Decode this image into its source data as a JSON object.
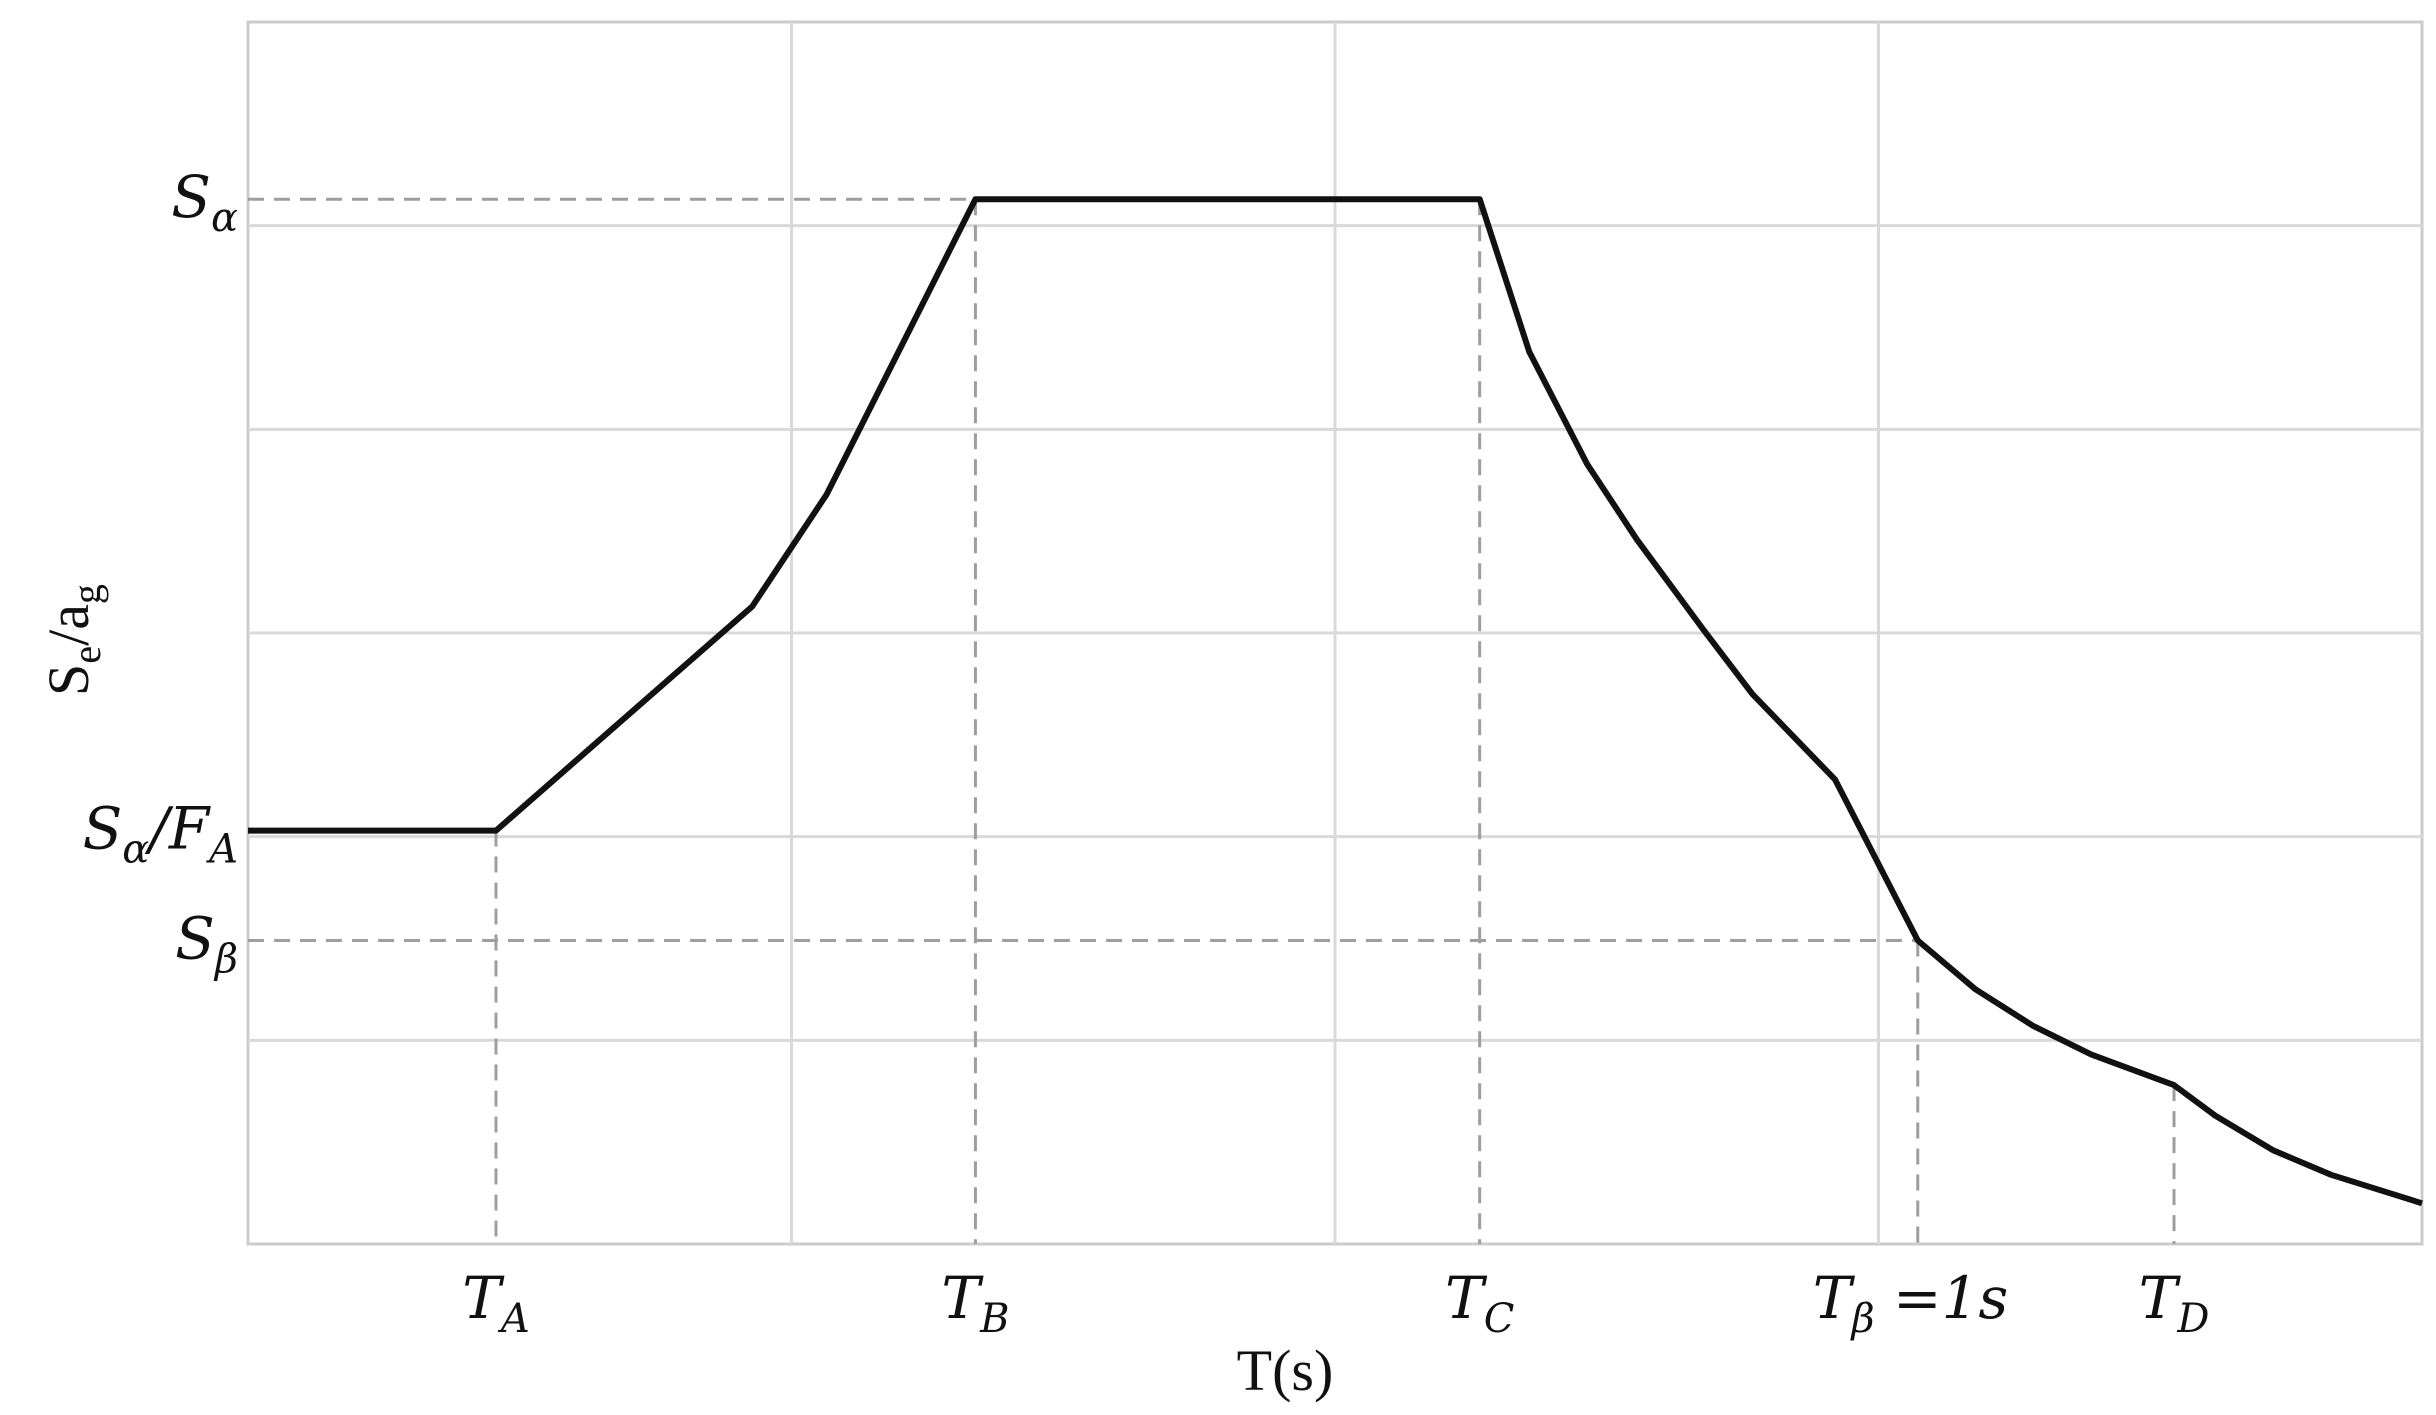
{
  "chart_data": {
    "type": "line",
    "title": "",
    "xlabel": "T(s)",
    "ylabel": {
      "main": "S",
      "sub1": "e",
      "mid": "/a",
      "sub2": "g"
    },
    "grid": true,
    "x_ticks": [
      {
        "main": "T",
        "sub": "A",
        "suffix": "",
        "value": 0.3
      },
      {
        "main": "T",
        "sub": "B",
        "suffix": "",
        "value": 0.88
      },
      {
        "main": "T",
        "sub": "C",
        "suffix": "",
        "value": 1.49
      },
      {
        "main": "T",
        "sub": "β",
        "suffix": " =1s",
        "value": 2.02
      },
      {
        "main": "T",
        "sub": "D",
        "suffix": "",
        "value": 2.33
      }
    ],
    "y_ticks": [
      {
        "main": "S",
        "sub": "α",
        "suffix": "",
        "value": 5.13
      },
      {
        "main": "S",
        "sub": "α",
        "suffix": "/F",
        "sub2": "A",
        "value": 2.03
      },
      {
        "main": "S",
        "sub": "β",
        "suffix": "",
        "value": 1.49
      }
    ],
    "xlim": [
      0,
      2.63
    ],
    "ylim": [
      0,
      6.0
    ],
    "series": [
      {
        "x": [
          0,
          0.3,
          0.61,
          0.7,
          0.88,
          1.49,
          1.55,
          1.62,
          1.68,
          1.76,
          1.82,
          1.92,
          2.02,
          2.09,
          2.16,
          2.23,
          2.33,
          2.38,
          2.45,
          2.52,
          2.63
        ],
        "y": [
          2.03,
          2.03,
          3.13,
          3.68,
          5.13,
          5.13,
          4.38,
          3.83,
          3.46,
          3.02,
          2.7,
          2.28,
          1.49,
          1.25,
          1.07,
          0.93,
          0.78,
          0.63,
          0.46,
          0.34,
          0.2
        ]
      }
    ],
    "guides": [
      {
        "x": 0.3,
        "y": 2.03
      },
      {
        "x": 0.88,
        "y": 5.13
      },
      {
        "x": 1.49,
        "y": 5.13
      },
      {
        "x": 2.02,
        "y": 1.49
      },
      {
        "x": 2.33,
        "y": 0.78
      }
    ],
    "colors": {
      "line": "#111111",
      "grid": "#d9d9d9",
      "guide": "#9e9e9e",
      "axis": "#cccccc"
    }
  }
}
